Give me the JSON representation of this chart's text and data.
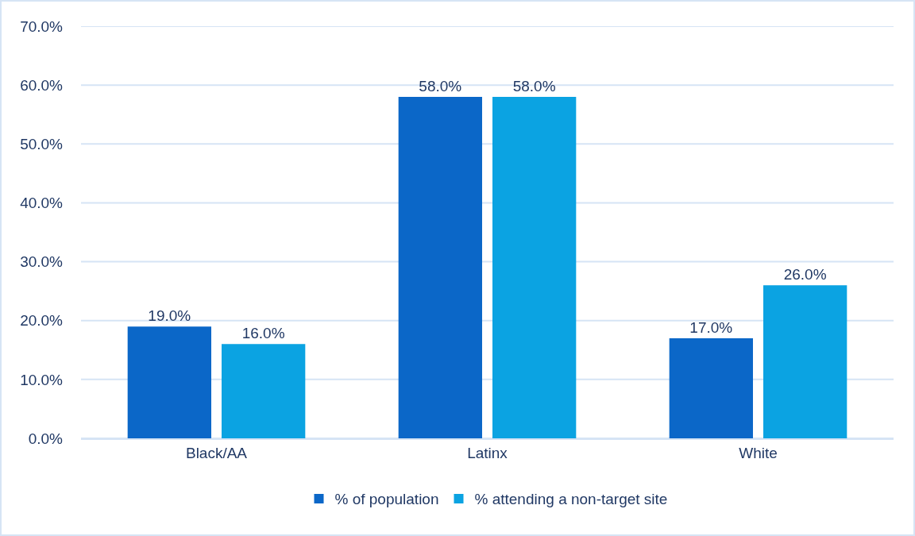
{
  "chart_data": {
    "type": "bar",
    "categories": [
      "Black/AA",
      "Latinx",
      "White"
    ],
    "series": [
      {
        "name": "% of population",
        "color": "#0b67c8",
        "values": [
          19,
          58,
          17
        ],
        "value_labels": [
          "19.0%",
          "58.0%",
          "17.0%"
        ]
      },
      {
        "name": "% attending a non-target site",
        "color": "#0ba3e2",
        "values": [
          16,
          58,
          26
        ],
        "value_labels": [
          "16.0%",
          "58.0%",
          "26.0%"
        ]
      }
    ],
    "ylim": [
      0,
      70
    ],
    "yticks": [
      {
        "value": 0,
        "label": "0.0%"
      },
      {
        "value": 10,
        "label": "10.0%"
      },
      {
        "value": 20,
        "label": "20.0%"
      },
      {
        "value": 30,
        "label": "30.0%"
      },
      {
        "value": 40,
        "label": "40.0%"
      },
      {
        "value": 50,
        "label": "50.0%"
      },
      {
        "value": 60,
        "label": "60.0%"
      },
      {
        "value": 70,
        "label": "70.0%"
      }
    ],
    "grid": "y",
    "legend": "bottom"
  }
}
